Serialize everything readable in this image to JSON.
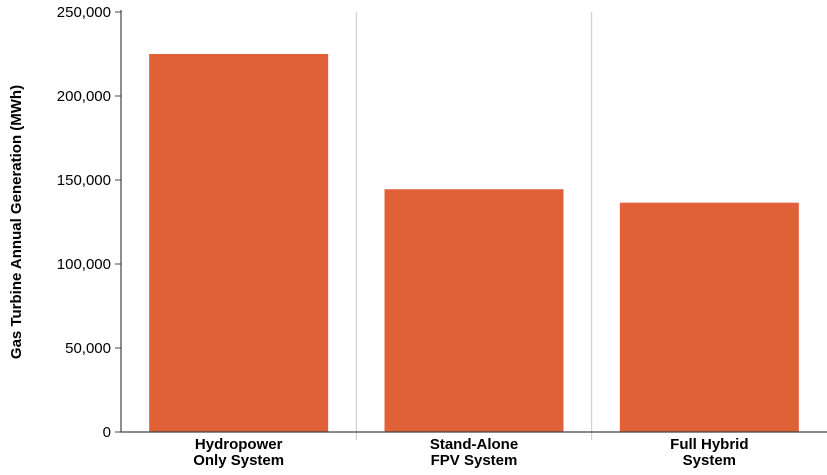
{
  "chart_data": {
    "type": "bar",
    "categories": [
      [
        "Hydropower",
        "Only System"
      ],
      [
        "Stand-Alone",
        "FPV System"
      ],
      [
        "Full Hybrid",
        "System"
      ]
    ],
    "values": [
      225000,
      144500,
      136500
    ],
    "ylabel": "Gas Turbine Annual Generation (MWh)",
    "xlabel": "",
    "ylim": [
      0,
      250000
    ],
    "yticks": [
      0,
      50000,
      100000,
      150000,
      200000,
      250000
    ],
    "ytick_labels": [
      "0",
      "50,000",
      "100,000",
      "150,000",
      "200,000",
      "250,000"
    ],
    "bar_color": "#e06038",
    "grid": "vertical category separators",
    "legend": "none"
  }
}
